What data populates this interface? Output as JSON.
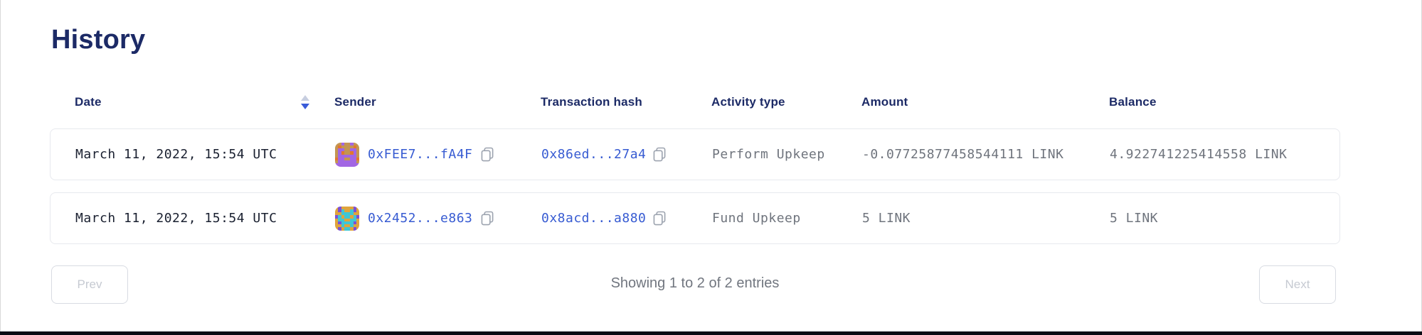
{
  "page": {
    "title": "History"
  },
  "table": {
    "headers": {
      "date": "Date",
      "sender": "Sender",
      "tx_hash": "Transaction hash",
      "activity_type": "Activity type",
      "amount": "Amount",
      "balance": "Balance"
    },
    "sort": {
      "column": "date",
      "direction": "desc"
    },
    "rows": [
      {
        "date": "March 11, 2022, 15:54 UTC",
        "sender": {
          "address_short": "0xFEE7...fA4F",
          "avatar": {
            "palette": {
              "t": "#c49552",
              "p": "#a266e3",
              "o": "#e2772e"
            },
            "grid": [
              "ttpttptt",
              "tottttot",
              "tppttppt",
              "tpottopt",
              "tppppppt",
              "oppttppo",
              "tppppppt",
              "pppppppp"
            ]
          }
        },
        "tx_hash": "0x86ed...27a4",
        "activity_type": "Perform Upkeep",
        "amount": "-0.07725877458544111 LINK",
        "balance": "4.922741225414558 LINK"
      },
      {
        "date": "March 11, 2022, 15:54 UTC",
        "sender": {
          "address_short": "0x2452...e863",
          "avatar": {
            "palette": {
              "g": "#dfa43c",
              "c": "#3fc6d5",
              "p": "#7b50d6"
            },
            "grid": [
              "gpggggpg",
              "gpcggcpg",
              "ggccccgg",
              "pcgccgcp",
              "gccggccg",
              "gpccccpg",
              "ggcggcgg",
              "gpgccgpg"
            ]
          }
        },
        "tx_hash": "0x8acd...a880",
        "activity_type": "Fund Upkeep",
        "amount": "5 LINK",
        "balance": "5 LINK"
      }
    ]
  },
  "pagination": {
    "prev_label": "Prev",
    "next_label": "Next",
    "summary": "Showing 1 to 2 of 2 entries",
    "prev_enabled": false,
    "next_enabled": false
  },
  "colors": {
    "title_text": "#1c2a66",
    "header_text": "#1c2a66",
    "link": "#375bd2",
    "body_text": "#1a2030",
    "muted_text": "#6f747d",
    "card_border": "#e7e9ee",
    "disabled_button_text": "#c6cad2",
    "disabled_button_border": "#d8dbe2",
    "sort_arrow_active": "#3a5bd9",
    "sort_arrow_inactive": "#c7cee0",
    "copy_icon": "#9ca3af",
    "bottom_bar": "#0a0c14"
  }
}
